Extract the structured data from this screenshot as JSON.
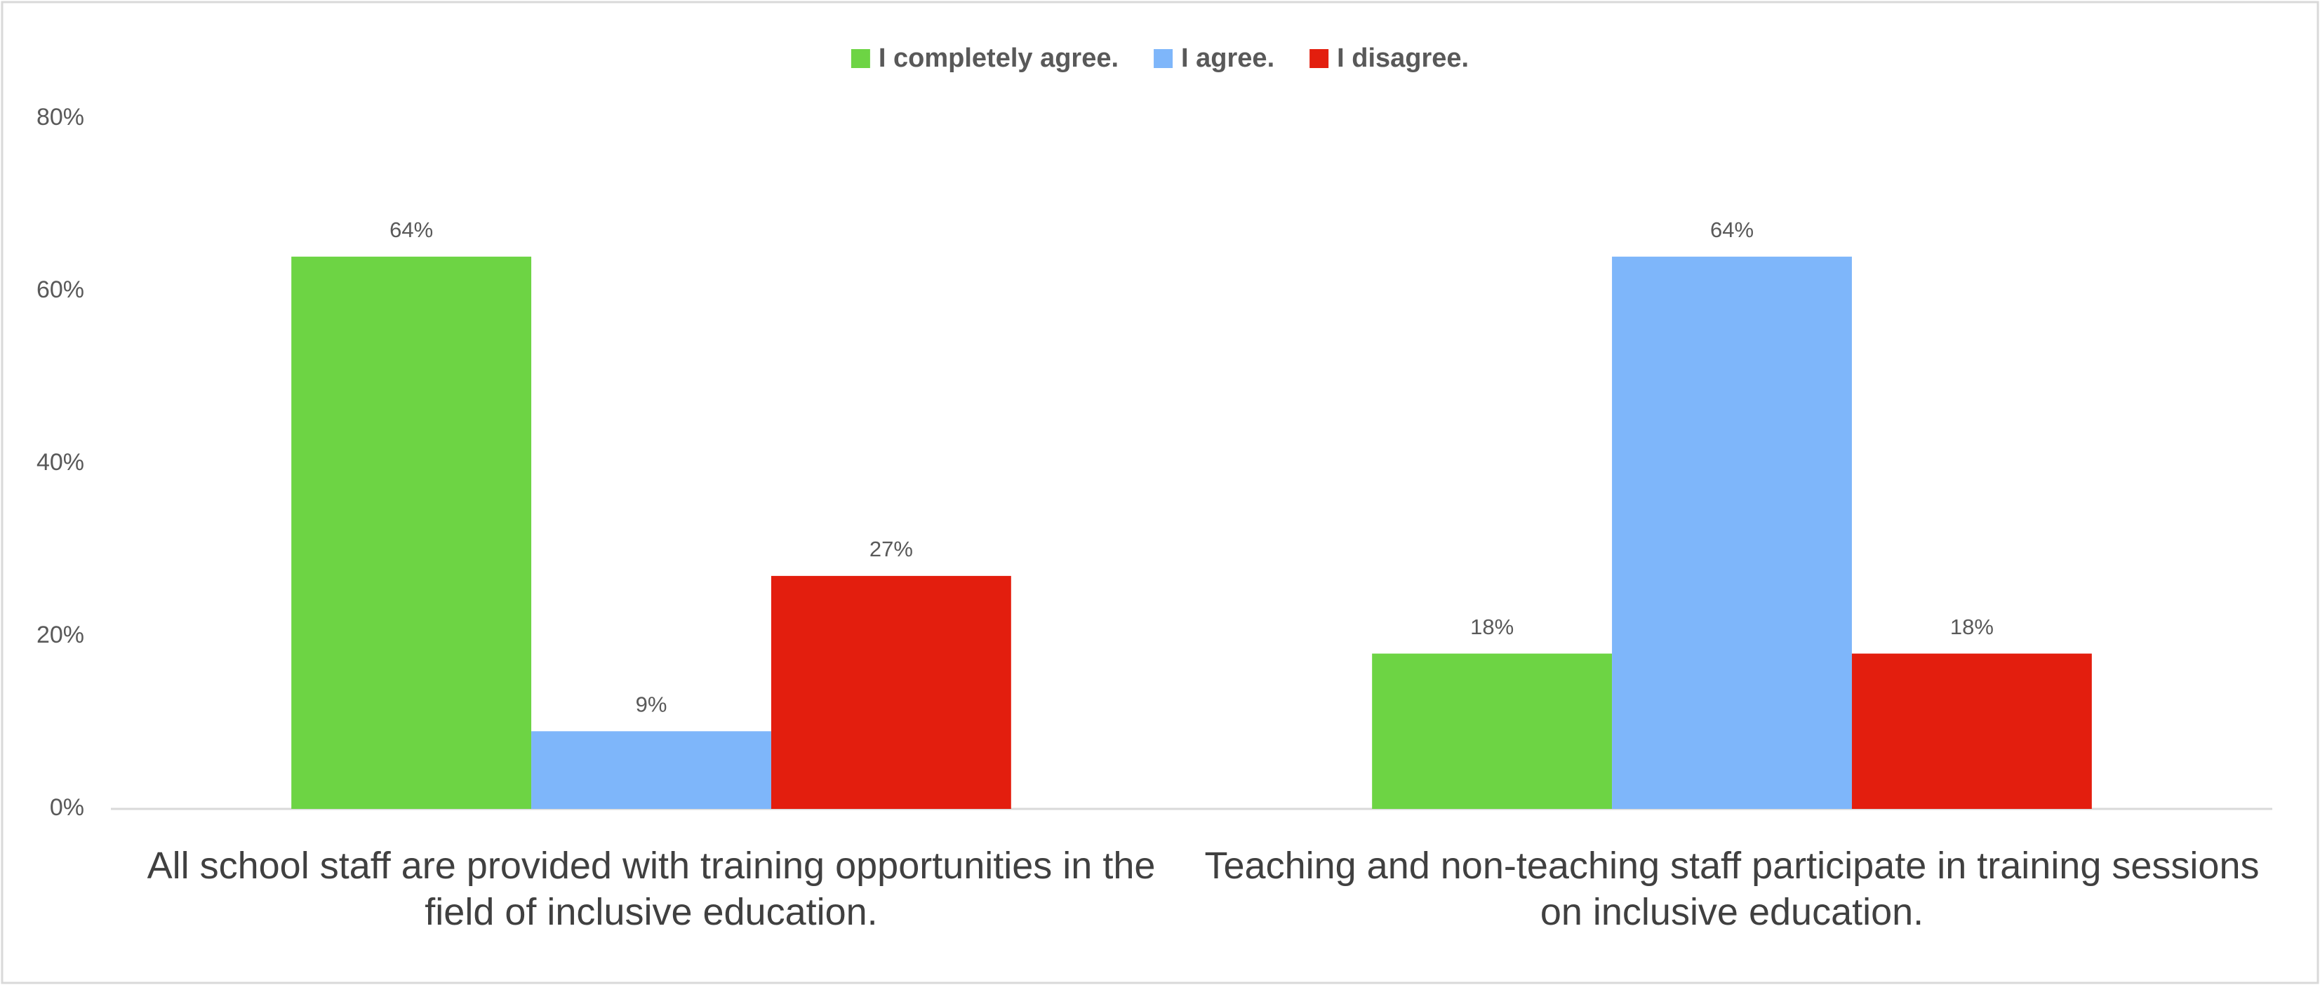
{
  "chart_data": {
    "type": "bar",
    "categories": [
      "All school staff are provided with training opportunities in the field of inclusive education.",
      "Teaching and non-teaching staff participate in training sessions on inclusive education."
    ],
    "series": [
      {
        "name": "I completely agree.",
        "color": "#6dd444",
        "values": [
          64,
          18
        ],
        "value_labels": [
          "64%",
          "18%"
        ]
      },
      {
        "name": "I agree.",
        "color": "#7eb6fa",
        "values": [
          9,
          64
        ],
        "value_labels": [
          "9%",
          "64%"
        ]
      },
      {
        "name": "I disagree.",
        "color": "#e31e0e",
        "values": [
          27,
          18
        ],
        "value_labels": [
          "27%",
          "18%"
        ]
      }
    ],
    "ylim": [
      0,
      80
    ],
    "yticks": [
      {
        "value": 0,
        "label": "0%"
      },
      {
        "value": 20,
        "label": "20%"
      },
      {
        "value": 40,
        "label": "40%"
      },
      {
        "value": 60,
        "label": "60%"
      },
      {
        "value": 80,
        "label": "80%"
      }
    ],
    "grid": false,
    "legend": "top"
  }
}
